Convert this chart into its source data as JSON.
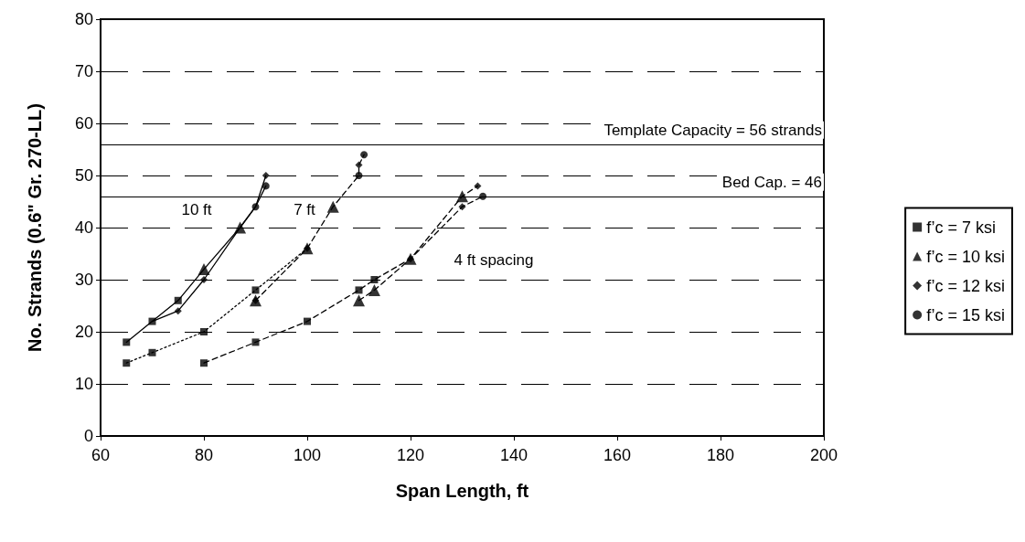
{
  "chart_data": {
    "type": "line",
    "xlabel": "Span Length, ft",
    "ylabel": "No. Strands (0.6\" Gr. 270-LL)",
    "xlim": [
      60,
      200
    ],
    "xticks": [
      60,
      80,
      100,
      120,
      140,
      160,
      180,
      200
    ],
    "ylim": [
      0,
      80
    ],
    "yticks": [
      0,
      10,
      20,
      30,
      40,
      50,
      60,
      70,
      80
    ],
    "grid": "y",
    "legend": "right",
    "series": [
      {
        "color": "#000000",
        "marker": "none",
        "line_style": "solid",
        "x": [
          65,
          70,
          75,
          80,
          87,
          90,
          92
        ],
        "values": [
          18,
          22,
          26,
          32,
          40,
          44,
          48
        ]
      },
      {
        "color": "#000000",
        "marker": "none",
        "line_style": "solid",
        "x": [
          70,
          75,
          80,
          87,
          90,
          92
        ],
        "values": [
          22,
          24,
          30,
          40,
          44,
          50
        ]
      },
      {
        "color": "#000000",
        "marker": "none",
        "line_style": "dotted",
        "x": [
          65,
          70,
          80,
          90,
          100
        ],
        "values": [
          14,
          16,
          20,
          28,
          36
        ]
      },
      {
        "color": "#000000",
        "marker": "none",
        "line_style": "dashed",
        "x": [
          90,
          100,
          105,
          110,
          110,
          111
        ],
        "values": [
          26,
          36,
          44,
          50,
          52,
          54
        ]
      },
      {
        "color": "#000000",
        "marker": "none",
        "line_style": "dashed",
        "x": [
          80,
          90,
          100,
          110,
          113,
          120,
          130,
          133
        ],
        "values": [
          14,
          18,
          22,
          28,
          30,
          34,
          46,
          48
        ]
      },
      {
        "color": "#000000",
        "marker": "none",
        "line_style": "dashed",
        "x": [
          110,
          113,
          120,
          130,
          134
        ],
        "values": [
          26,
          28,
          34,
          44,
          46
        ]
      },
      {
        "type": "scatter",
        "name": "f’c = 7 ksi",
        "color": "#000000",
        "marker": "square",
        "x": [
          65,
          70,
          75,
          65,
          70,
          80,
          90,
          80,
          90,
          100,
          110,
          113
        ],
        "values": [
          18,
          22,
          26,
          14,
          16,
          20,
          28,
          14,
          18,
          22,
          28,
          30
        ]
      },
      {
        "type": "scatter",
        "name": "f’c = 10 ksi",
        "color": "#000000",
        "marker": "triangle",
        "x": [
          80,
          87,
          90,
          100,
          105,
          110,
          113,
          120,
          130
        ],
        "values": [
          32,
          40,
          26,
          36,
          44,
          26,
          28,
          34,
          46
        ]
      },
      {
        "type": "scatter",
        "name": "f’c = 12 ksi",
        "color": "#000000",
        "marker": "diamond",
        "x": [
          75,
          80,
          92,
          90,
          100,
          110,
          120,
          130,
          133
        ],
        "values": [
          24,
          30,
          50,
          26,
          36,
          52,
          34,
          44,
          48
        ]
      },
      {
        "type": "scatter",
        "name": "f’c = 15 ksi",
        "color": "#000000",
        "marker": "circle",
        "x": [
          90,
          92,
          110,
          111,
          134
        ],
        "values": [
          44,
          48,
          50,
          54,
          46
        ]
      }
    ],
    "ref_lines": [
      {
        "axis": "y",
        "value": 56,
        "label": "Template Capacity = 56 strands",
        "color": "#000000",
        "line_style": "solid"
      },
      {
        "axis": "y",
        "value": 46,
        "label": "Bed Cap. = 46",
        "color": "#000000",
        "line_style": "solid"
      }
    ],
    "annotations": [
      "10 ft",
      "7 ft",
      "4 ft spacing"
    ]
  }
}
